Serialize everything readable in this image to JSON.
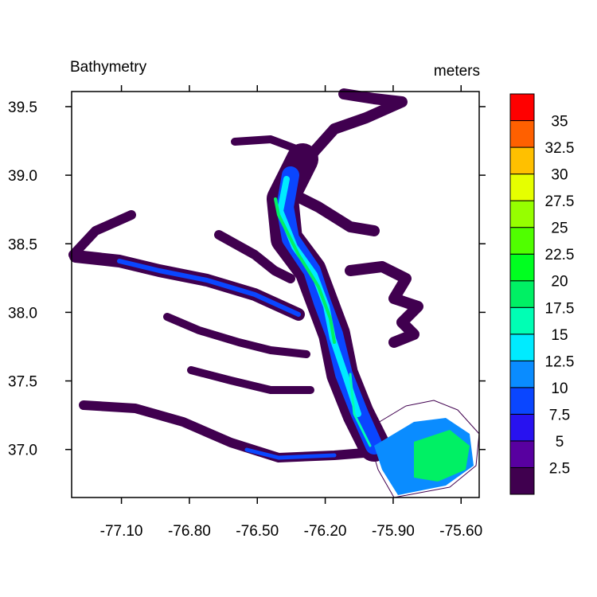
{
  "chart_data": {
    "type": "contour-map",
    "title": "Bathymetry",
    "units": "meters",
    "xlim": [
      -77.32,
      -75.52
    ],
    "ylim": [
      36.65,
      39.61
    ],
    "xticks": [
      {
        "value": -77.1,
        "label": "-77.10"
      },
      {
        "value": -76.8,
        "label": "-76.80"
      },
      {
        "value": -76.5,
        "label": "-76.50"
      },
      {
        "value": -76.2,
        "label": "-76.20"
      },
      {
        "value": -75.9,
        "label": "-75.90"
      },
      {
        "value": -75.6,
        "label": "-75.60"
      }
    ],
    "yticks": [
      {
        "value": 37.0,
        "label": "37.0"
      },
      37.5,
      {
        "value": 38.0,
        "label": "38.0"
      },
      38.5,
      {
        "value": 39.0,
        "label": "39.0"
      },
      39.5
    ],
    "colorbar": {
      "levels": [
        2.5,
        5,
        7.5,
        10,
        12.5,
        15,
        17.5,
        20,
        22.5,
        25,
        27.5,
        30,
        32.5,
        35
      ],
      "colors": [
        "#40004f",
        "#5800a0",
        "#2812f0",
        "#0a46ff",
        "#0a8cff",
        "#00ebff",
        "#00ffb4",
        "#00f064",
        "#00ff20",
        "#50ff00",
        "#96ff00",
        "#e6ff00",
        "#ffc000",
        "#ff6000",
        "#ff0000"
      ]
    }
  }
}
